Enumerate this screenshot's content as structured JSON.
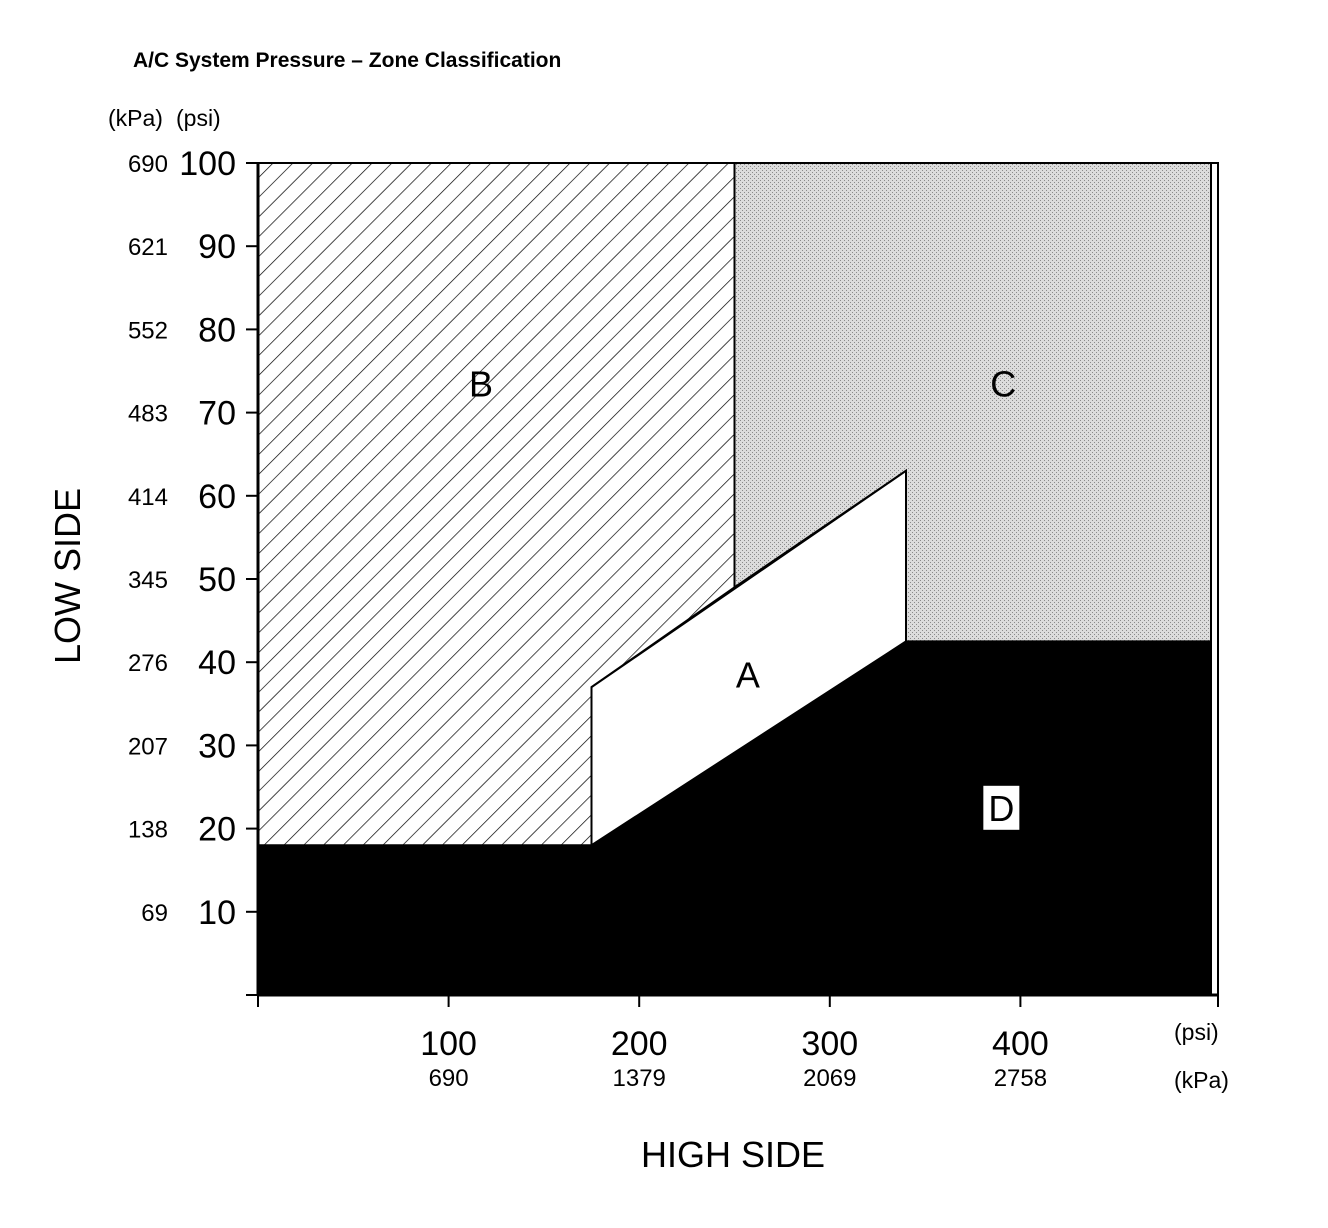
{
  "chart_data": {
    "type": "area",
    "title": "A/C System Pressure – Zone Classification",
    "xlabel": "HIGH SIDE",
    "ylabel": "LOW SIDE",
    "x_units": [
      "(psi)",
      "(kPa)"
    ],
    "y_units": [
      "(kPa)",
      "(psi)"
    ],
    "xlim": [
      0,
      500
    ],
    "ylim": [
      0,
      100
    ],
    "x_ticks": [
      {
        "psi": "100",
        "kpa": "690",
        "value": 100
      },
      {
        "psi": "200",
        "kpa": "1379",
        "value": 200
      },
      {
        "psi": "300",
        "kpa": "2069",
        "value": 300
      },
      {
        "psi": "400",
        "kpa": "2758",
        "value": 400
      }
    ],
    "y_ticks": [
      {
        "psi": "10",
        "kpa": "69",
        "value": 10
      },
      {
        "psi": "20",
        "kpa": "138",
        "value": 20
      },
      {
        "psi": "30",
        "kpa": "207",
        "value": 30
      },
      {
        "psi": "40",
        "kpa": "276",
        "value": 40
      },
      {
        "psi": "50",
        "kpa": "345",
        "value": 50
      },
      {
        "psi": "60",
        "kpa": "414",
        "value": 60
      },
      {
        "psi": "70",
        "kpa": "483",
        "value": 70
      },
      {
        "psi": "80",
        "kpa": "552",
        "value": 80
      },
      {
        "psi": "90",
        "kpa": "621",
        "value": 90
      },
      {
        "psi": "100",
        "kpa": "690",
        "value": 100
      }
    ],
    "zones": [
      {
        "name": "D",
        "fill": "solid",
        "color": "#000000",
        "label_color": "#000000",
        "label_bg": "#ffffff",
        "label_at": [
          390,
          22.5
        ],
        "polygon": [
          [
            0,
            0
          ],
          [
            500,
            0
          ],
          [
            500,
            42.5
          ],
          [
            340,
            42.5
          ],
          [
            175,
            18
          ],
          [
            0,
            18
          ]
        ]
      },
      {
        "name": "B",
        "fill": "hatch",
        "color": "#000000",
        "label_color": "#000000",
        "label_at": [
          117,
          73.5
        ],
        "polygon": [
          [
            0,
            18
          ],
          [
            175,
            18
          ],
          [
            175,
            37
          ],
          [
            250,
            49
          ],
          [
            250,
            100
          ],
          [
            0,
            100
          ]
        ]
      },
      {
        "name": "C",
        "fill": "stipple",
        "color": "#d6d6d6",
        "label_color": "#000000",
        "label_at": [
          391,
          73.5
        ],
        "polygon": [
          [
            250,
            100
          ],
          [
            500,
            100
          ],
          [
            500,
            42.5
          ],
          [
            340,
            42.5
          ],
          [
            340,
            63
          ],
          [
            250,
            49
          ]
        ]
      },
      {
        "name": "A",
        "fill": "none",
        "color": "#ffffff",
        "label_color": "#000000",
        "label_at": [
          257,
          38.5
        ],
        "polygon": [
          [
            175,
            18
          ],
          [
            340,
            42.5
          ],
          [
            340,
            63
          ],
          [
            175,
            37
          ]
        ]
      }
    ],
    "grid": false,
    "legend": "none"
  }
}
